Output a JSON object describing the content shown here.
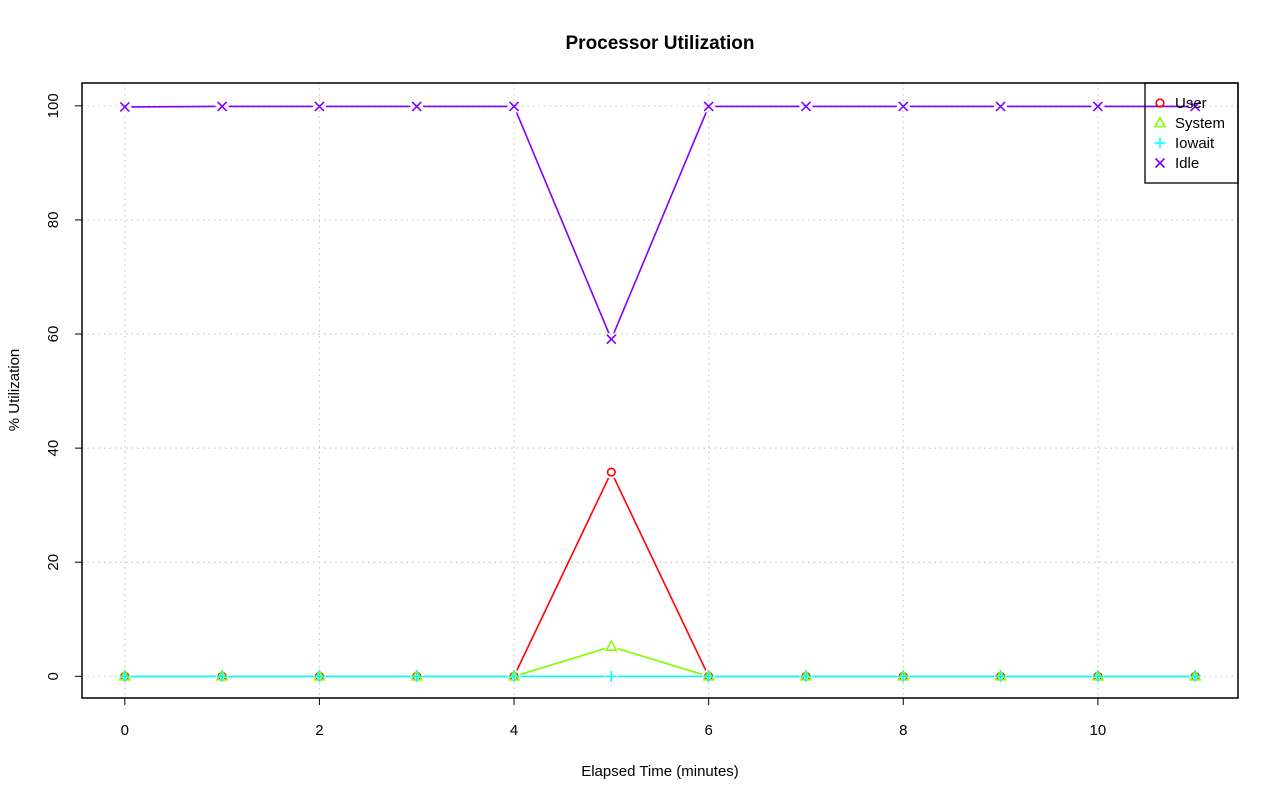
{
  "chart_data": {
    "type": "line",
    "title": "Processor Utilization",
    "xlabel": "Elapsed Time (minutes)",
    "ylabel": "% Utilization",
    "x": [
      0,
      1,
      2,
      3,
      4,
      5,
      6,
      7,
      8,
      9,
      10,
      11
    ],
    "xlim": [
      -0.44,
      11.44
    ],
    "ylim": [
      -3.8,
      104
    ],
    "xticks": [
      0,
      2,
      4,
      6,
      8,
      10
    ],
    "yticks": [
      0,
      20,
      40,
      60,
      80,
      100
    ],
    "grid": true,
    "legend_position": "top-right",
    "series": [
      {
        "name": "User",
        "color": "#ff0000",
        "marker": "circle",
        "values": [
          0,
          0,
          0,
          0,
          0,
          35.8,
          0,
          0,
          0,
          0,
          0,
          0
        ]
      },
      {
        "name": "System",
        "color": "#80ff00",
        "marker": "triangle",
        "values": [
          0,
          0,
          0,
          0,
          0,
          5.2,
          0,
          0,
          0,
          0,
          0,
          0
        ]
      },
      {
        "name": "Iowait",
        "color": "#00ffff",
        "marker": "plus",
        "values": [
          0,
          0,
          0,
          0,
          0,
          0,
          0,
          0,
          0,
          0,
          0,
          0
        ]
      },
      {
        "name": "Idle",
        "color": "#8000ff",
        "marker": "cross",
        "values": [
          99.8,
          99.9,
          99.9,
          99.9,
          99.9,
          59.1,
          99.9,
          99.9,
          99.9,
          99.9,
          99.9,
          99.9
        ]
      }
    ]
  }
}
